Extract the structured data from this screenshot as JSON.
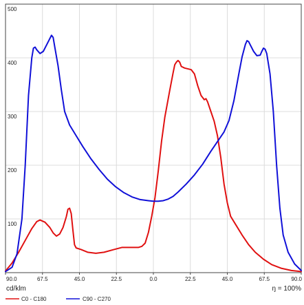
{
  "chart_data": {
    "type": "line",
    "unit_label": "cd/klm",
    "ratio_label": "ŋ = 100%",
    "ylim": [
      0,
      500
    ],
    "xlim": [
      -90,
      90
    ],
    "y_ticks": [
      100,
      200,
      300,
      400,
      500
    ],
    "x_ticks": [
      {
        "value": -90,
        "label": "90.0"
      },
      {
        "value": -67.5,
        "label": "67.5"
      },
      {
        "value": -45,
        "label": "45.0"
      },
      {
        "value": -22.5,
        "label": "22.5"
      },
      {
        "value": 0,
        "label": "0.0"
      },
      {
        "value": 22.5,
        "label": "22.5"
      },
      {
        "value": 45,
        "label": "45.0"
      },
      {
        "value": 67.5,
        "label": "67.5"
      },
      {
        "value": 90,
        "label": "90.0"
      }
    ],
    "grid": true,
    "series": [
      {
        "name": "C0 - C180",
        "color": "#e01010",
        "points": [
          [
            -90,
            3
          ],
          [
            -86,
            18
          ],
          [
            -82,
            38
          ],
          [
            -78,
            60
          ],
          [
            -74,
            82
          ],
          [
            -71,
            95
          ],
          [
            -69,
            98
          ],
          [
            -66,
            94
          ],
          [
            -63,
            84
          ],
          [
            -61,
            74
          ],
          [
            -59,
            68
          ],
          [
            -57,
            72
          ],
          [
            -55,
            84
          ],
          [
            -53,
            104
          ],
          [
            -52,
            118
          ],
          [
            -51,
            120
          ],
          [
            -50,
            110
          ],
          [
            -49,
            80
          ],
          [
            -48,
            52
          ],
          [
            -47,
            46
          ],
          [
            -44,
            43
          ],
          [
            -40,
            38
          ],
          [
            -35,
            36
          ],
          [
            -30,
            38
          ],
          [
            -24,
            43
          ],
          [
            -19,
            47
          ],
          [
            -14,
            47
          ],
          [
            -9,
            47
          ],
          [
            -7,
            49
          ],
          [
            -5,
            55
          ],
          [
            -3,
            75
          ],
          [
            -1,
            105
          ],
          [
            1,
            140
          ],
          [
            3,
            190
          ],
          [
            5,
            245
          ],
          [
            7,
            290
          ],
          [
            10,
            340
          ],
          [
            12,
            372
          ],
          [
            13,
            387
          ],
          [
            14,
            392
          ],
          [
            15,
            395
          ],
          [
            16,
            392
          ],
          [
            17,
            384
          ],
          [
            19,
            381
          ],
          [
            23,
            378
          ],
          [
            25,
            370
          ],
          [
            27,
            348
          ],
          [
            29,
            330
          ],
          [
            31,
            322
          ],
          [
            32,
            324
          ],
          [
            33,
            318
          ],
          [
            35,
            300
          ],
          [
            37,
            282
          ],
          [
            39,
            255
          ],
          [
            41,
            215
          ],
          [
            43,
            165
          ],
          [
            45,
            130
          ],
          [
            47,
            105
          ],
          [
            50,
            90
          ],
          [
            54,
            70
          ],
          [
            58,
            52
          ],
          [
            62,
            38
          ],
          [
            67,
            25
          ],
          [
            72,
            15
          ],
          [
            78,
            8
          ],
          [
            84,
            4
          ],
          [
            90,
            2
          ]
        ]
      },
      {
        "name": "C90 - C270",
        "color": "#1010d8",
        "points": [
          [
            -90,
            2
          ],
          [
            -86,
            10
          ],
          [
            -83,
            35
          ],
          [
            -80,
            100
          ],
          [
            -78,
            200
          ],
          [
            -76,
            330
          ],
          [
            -74,
            400
          ],
          [
            -73,
            418
          ],
          [
            -72,
            420
          ],
          [
            -71,
            415
          ],
          [
            -69,
            408
          ],
          [
            -67,
            412
          ],
          [
            -65,
            424
          ],
          [
            -63,
            436
          ],
          [
            -62,
            442
          ],
          [
            -61,
            438
          ],
          [
            -60,
            420
          ],
          [
            -58,
            385
          ],
          [
            -56,
            340
          ],
          [
            -54,
            300
          ],
          [
            -51,
            275
          ],
          [
            -47,
            255
          ],
          [
            -43,
            235
          ],
          [
            -38,
            212
          ],
          [
            -33,
            192
          ],
          [
            -28,
            174
          ],
          [
            -23,
            160
          ],
          [
            -18,
            149
          ],
          [
            -13,
            141
          ],
          [
            -8,
            136
          ],
          [
            -3,
            134
          ],
          [
            0,
            133
          ],
          [
            3,
            133
          ],
          [
            6,
            134
          ],
          [
            9,
            137
          ],
          [
            12,
            142
          ],
          [
            15,
            150
          ],
          [
            20,
            165
          ],
          [
            25,
            182
          ],
          [
            30,
            202
          ],
          [
            35,
            226
          ],
          [
            39,
            244
          ],
          [
            43,
            262
          ],
          [
            46,
            283
          ],
          [
            49,
            320
          ],
          [
            52,
            370
          ],
          [
            54,
            402
          ],
          [
            56,
            425
          ],
          [
            57,
            432
          ],
          [
            58,
            430
          ],
          [
            59,
            424
          ],
          [
            61,
            412
          ],
          [
            63,
            404
          ],
          [
            65,
            405
          ],
          [
            66,
            412
          ],
          [
            67,
            418
          ],
          [
            68,
            416
          ],
          [
            69,
            408
          ],
          [
            71,
            370
          ],
          [
            73,
            300
          ],
          [
            75,
            200
          ],
          [
            77,
            120
          ],
          [
            79,
            70
          ],
          [
            82,
            38
          ],
          [
            86,
            16
          ],
          [
            90,
            4
          ]
        ]
      }
    ]
  }
}
